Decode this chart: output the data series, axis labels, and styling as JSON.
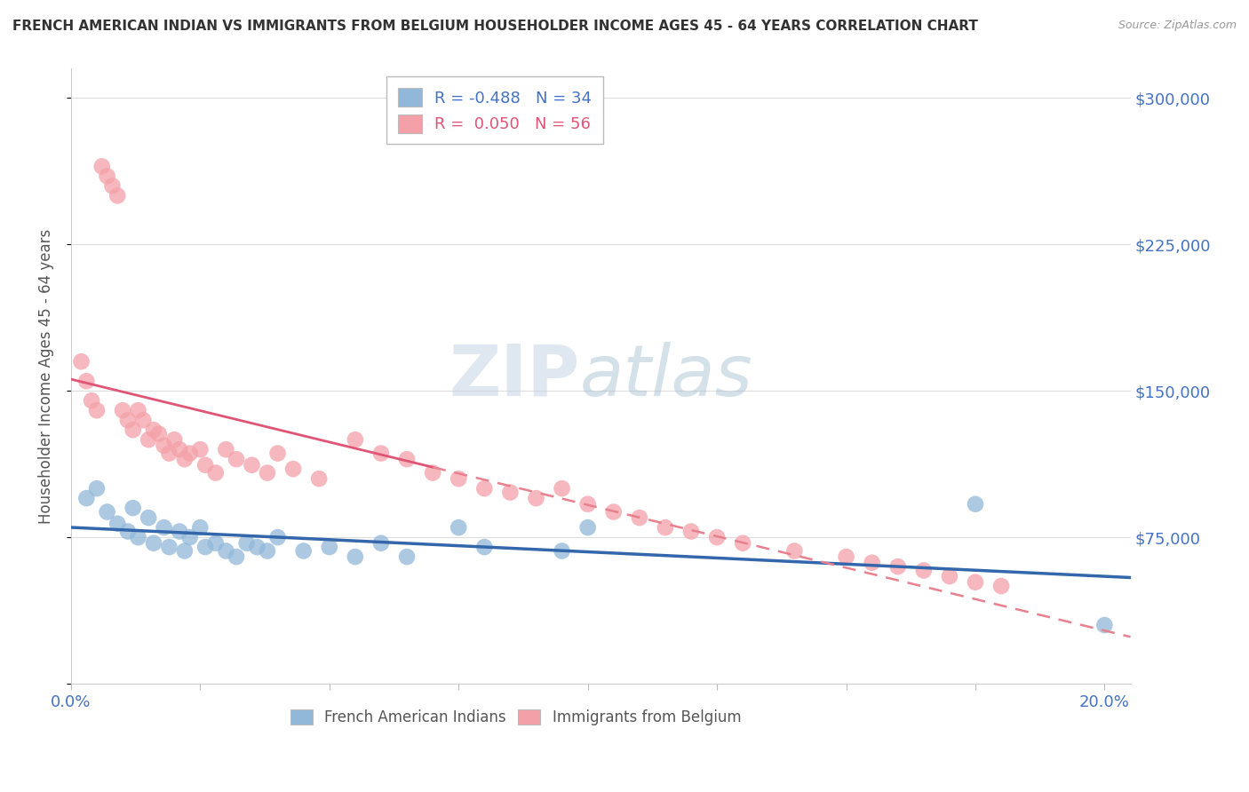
{
  "title": "FRENCH AMERICAN INDIAN VS IMMIGRANTS FROM BELGIUM HOUSEHOLDER INCOME AGES 45 - 64 YEARS CORRELATION CHART",
  "source": "Source: ZipAtlas.com",
  "ylabel": "Householder Income Ages 45 - 64 years",
  "xlim": [
    0.0,
    0.205
  ],
  "ylim": [
    0,
    315000
  ],
  "yticks": [
    0,
    75000,
    150000,
    225000,
    300000
  ],
  "ytick_labels": [
    "",
    "$75,000",
    "$150,000",
    "$225,000",
    "$300,000"
  ],
  "xticks": [
    0.0,
    0.025,
    0.05,
    0.075,
    0.1,
    0.125,
    0.15,
    0.175,
    0.2
  ],
  "xtick_labels": [
    "0.0%",
    "",
    "",
    "",
    "",
    "",
    "",
    "",
    "20.0%"
  ],
  "watermark_zip": "ZIP",
  "watermark_atlas": "atlas",
  "legend_blue_r": "R = -0.488",
  "legend_blue_n": "N = 34",
  "legend_pink_r": "R =  0.050",
  "legend_pink_n": "N = 56",
  "blue_color": "#92b8d9",
  "pink_color": "#f4a0a8",
  "blue_line_color": "#3366aa",
  "pink_line_color": "#e05575",
  "pink_dash_color": "#e8808e",
  "background_color": "#ffffff",
  "blue_scatter_x": [
    0.003,
    0.005,
    0.007,
    0.009,
    0.011,
    0.012,
    0.013,
    0.015,
    0.016,
    0.018,
    0.019,
    0.021,
    0.022,
    0.023,
    0.025,
    0.026,
    0.028,
    0.03,
    0.032,
    0.034,
    0.036,
    0.038,
    0.04,
    0.045,
    0.05,
    0.055,
    0.06,
    0.065,
    0.075,
    0.08,
    0.095,
    0.1,
    0.175,
    0.2
  ],
  "blue_scatter_y": [
    95000,
    100000,
    88000,
    82000,
    78000,
    90000,
    75000,
    85000,
    72000,
    80000,
    70000,
    78000,
    68000,
    75000,
    80000,
    70000,
    72000,
    68000,
    65000,
    72000,
    70000,
    68000,
    75000,
    68000,
    70000,
    65000,
    72000,
    65000,
    80000,
    70000,
    68000,
    80000,
    92000,
    30000
  ],
  "pink_scatter_x": [
    0.002,
    0.003,
    0.004,
    0.005,
    0.006,
    0.007,
    0.008,
    0.009,
    0.01,
    0.011,
    0.012,
    0.013,
    0.014,
    0.015,
    0.016,
    0.017,
    0.018,
    0.019,
    0.02,
    0.021,
    0.022,
    0.023,
    0.025,
    0.026,
    0.028,
    0.03,
    0.032,
    0.035,
    0.038,
    0.04,
    0.043,
    0.048,
    0.055,
    0.06,
    0.065,
    0.07,
    0.075,
    0.08,
    0.085,
    0.09,
    0.095,
    0.1,
    0.105,
    0.11,
    0.115,
    0.12,
    0.125,
    0.13,
    0.14,
    0.15,
    0.155,
    0.16,
    0.165,
    0.17,
    0.175,
    0.18
  ],
  "pink_scatter_y": [
    165000,
    155000,
    145000,
    140000,
    265000,
    260000,
    255000,
    250000,
    140000,
    135000,
    130000,
    140000,
    135000,
    125000,
    130000,
    128000,
    122000,
    118000,
    125000,
    120000,
    115000,
    118000,
    120000,
    112000,
    108000,
    120000,
    115000,
    112000,
    108000,
    118000,
    110000,
    105000,
    125000,
    118000,
    115000,
    108000,
    105000,
    100000,
    98000,
    95000,
    100000,
    92000,
    88000,
    85000,
    80000,
    78000,
    75000,
    72000,
    68000,
    65000,
    62000,
    60000,
    58000,
    55000,
    52000,
    50000
  ]
}
